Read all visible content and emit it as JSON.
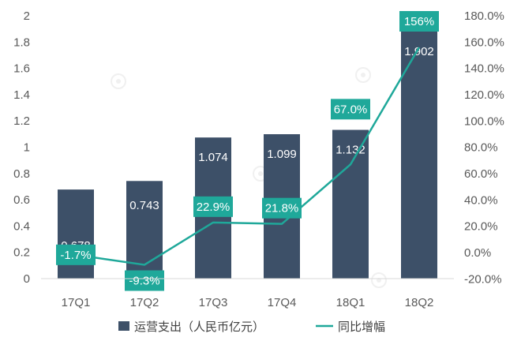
{
  "chart_data": {
    "type": "bar",
    "categories": [
      "17Q1",
      "17Q2",
      "17Q3",
      "17Q4",
      "18Q1",
      "18Q2"
    ],
    "series": [
      {
        "name": "运营支出（人民币亿元）",
        "type": "bar",
        "axis": "left",
        "values": [
          0.678,
          0.743,
          1.074,
          1.099,
          1.132,
          1.902
        ],
        "labels": [
          "0.678",
          "0.743",
          "1.074",
          "1.099",
          "1.132",
          "1.902"
        ]
      },
      {
        "name": "同比增幅",
        "type": "line",
        "axis": "right",
        "values": [
          -1.7,
          -9.3,
          22.9,
          21.8,
          67.0,
          156
        ],
        "labels": [
          "-1.7%",
          "-9.3%",
          "22.9%",
          "21.8%",
          "67.0%",
          "156%"
        ]
      }
    ],
    "ylim_left": [
      0,
      2
    ],
    "yticks_left": [
      "0",
      "0.2",
      "0.4",
      "0.6",
      "0.8",
      "1",
      "1.2",
      "1.4",
      "1.6",
      "1.8",
      "2"
    ],
    "ylim_right": [
      -20,
      180
    ],
    "yticks_right": [
      "-20.0%",
      "0.0%",
      "20.0%",
      "40.0%",
      "60.0%",
      "80.0%",
      "100.0%",
      "120.0%",
      "140.0%",
      "160.0%",
      "180.0%"
    ],
    "legend_position": "bottom",
    "grid": false,
    "colors": {
      "bar": "#3d5068",
      "line": "#1fa89a",
      "label_box": "#1fa89a"
    }
  }
}
